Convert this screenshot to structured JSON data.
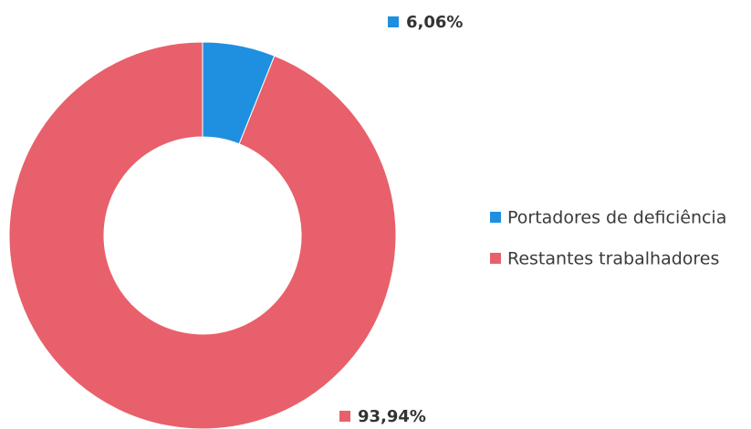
{
  "chart_data": {
    "type": "donut",
    "categories": [
      "Portadores de deficiência",
      "Restantes trabalhadores"
    ],
    "values": [
      6.06,
      93.94
    ],
    "value_labels": [
      "6,06%",
      "93,94%"
    ],
    "colors": [
      "#1f8fe0",
      "#e8606b"
    ],
    "legend": "right"
  }
}
